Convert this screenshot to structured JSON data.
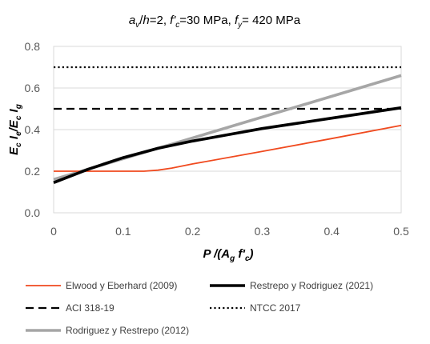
{
  "chart_data": {
    "type": "line",
    "title": "a_v/h=2, f'_c=30 MPa, f_y= 420 MPa",
    "xlabel": "P /(A_g f'_c)",
    "ylabel": "E_c I_e/E_c I_g",
    "xlim": [
      0,
      0.5
    ],
    "ylim": [
      0,
      0.8
    ],
    "x_ticks": [
      "0",
      "0.1",
      "0.2",
      "0.3",
      "0.4",
      "0.5"
    ],
    "y_ticks": [
      "0.0",
      "0.2",
      "0.4",
      "0.6",
      "0.8"
    ],
    "grid": "horizontal",
    "legend_position": "bottom",
    "series": [
      {
        "name": "Elwood y Eberhard (2009)",
        "color": "#f04a1f",
        "style": "solid",
        "width": "thin",
        "points": [
          [
            0,
            0.2
          ],
          [
            0.05,
            0.2
          ],
          [
            0.1,
            0.2
          ],
          [
            0.13,
            0.2
          ],
          [
            0.15,
            0.205
          ],
          [
            0.17,
            0.215
          ],
          [
            0.2,
            0.235
          ],
          [
            0.3,
            0.295
          ],
          [
            0.4,
            0.357
          ],
          [
            0.5,
            0.42
          ]
        ]
      },
      {
        "name": "Restrepo y Rodriguez (2021)",
        "color": "#000000",
        "style": "solid",
        "width": "thick",
        "points": [
          [
            0,
            0.145
          ],
          [
            0.05,
            0.21
          ],
          [
            0.1,
            0.265
          ],
          [
            0.15,
            0.31
          ],
          [
            0.2,
            0.345
          ],
          [
            0.25,
            0.375
          ],
          [
            0.3,
            0.405
          ],
          [
            0.35,
            0.43
          ],
          [
            0.4,
            0.455
          ],
          [
            0.45,
            0.48
          ],
          [
            0.5,
            0.505
          ]
        ]
      },
      {
        "name": "ACI 318-19",
        "color": "#000000",
        "style": "dashed",
        "width": "normal",
        "points": [
          [
            0,
            0.5
          ],
          [
            0.5,
            0.5
          ]
        ]
      },
      {
        "name": "NTCC 2017",
        "color": "#000000",
        "style": "dotted",
        "width": "normal",
        "points": [
          [
            0,
            0.7
          ],
          [
            0.5,
            0.7
          ]
        ]
      },
      {
        "name": "Rodriguez y Restrepo (2012)",
        "color": "#a6a6a6",
        "style": "solid",
        "width": "thick",
        "points": [
          [
            0,
            0.16
          ],
          [
            0.5,
            0.66
          ]
        ]
      }
    ]
  }
}
